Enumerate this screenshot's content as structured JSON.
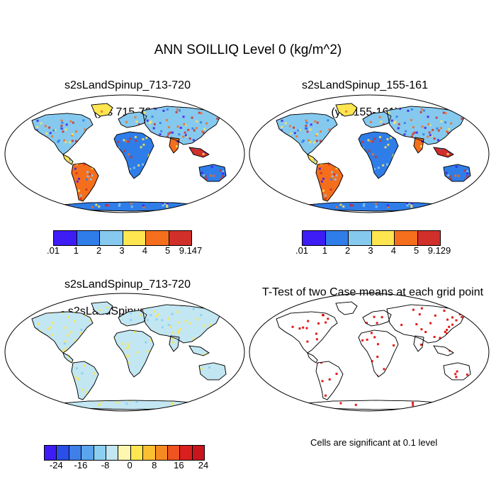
{
  "title": "ANN SOILLIQ Level 0 (kg/m^2)",
  "panels": {
    "top_left": {
      "title_line1": "s2sLandSpinup_713-720",
      "title_line2": "(yrs 715-721)"
    },
    "top_right": {
      "title_line1": "s2sLandSpinup_155-161",
      "title_line2": "(yrs 155-161)"
    },
    "bottom_left": {
      "title_line1": "s2sLandSpinup_713-720",
      "title_line2": "- s2sLandSpinup_155-161"
    },
    "bottom_right": {
      "title_line1": "T-Test of two Case means at each grid point"
    }
  },
  "colorbar_top_left": {
    "labels": [
      ".01",
      "1",
      "2",
      "3",
      "4",
      "5",
      "9.147"
    ],
    "colors": [
      "#3e1cf5",
      "#2f7de8",
      "#86c9ef",
      "#fde650",
      "#f56e1c",
      "#d02f2a"
    ]
  },
  "colorbar_top_right": {
    "labels": [
      ".01",
      "1",
      "2",
      "3",
      "4",
      "5",
      "9.129"
    ],
    "colors": [
      "#3e1cf5",
      "#2f7de8",
      "#86c9ef",
      "#fde650",
      "#f56e1c",
      "#d02f2a"
    ]
  },
  "colorbar_diff": {
    "labels": [
      "-24",
      "-16",
      "-8",
      "0",
      "8",
      "16",
      "24"
    ],
    "colors": [
      "#3e1cf5",
      "#2a4fe8",
      "#3f7fe8",
      "#5aa5ee",
      "#8ccff0",
      "#c2e6f2",
      "#fff7b0",
      "#fde650",
      "#fbbf32",
      "#f58a22",
      "#ee5320",
      "#d9201e",
      "#c9151c"
    ]
  },
  "footnote": "Cells are significant at 0.1 level",
  "colors": {
    "land_low": "#3e1cf5",
    "land_mid": "#86c9ef",
    "land_high": "#d02f2a",
    "diff_base": "#c2e6f2",
    "signif": "#e00000"
  }
}
